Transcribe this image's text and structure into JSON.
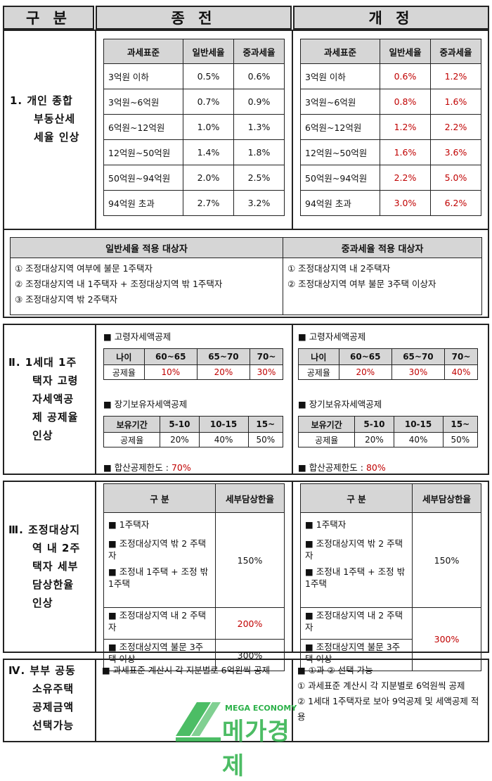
{
  "header": {
    "col1": "구 분",
    "col2": "종 전",
    "col3": "개 정"
  },
  "section1": {
    "label": [
      "1. 개인 종합",
      "부동산세",
      "세율 인상"
    ],
    "tax_headers": [
      "과세표준",
      "일반세율",
      "중과세율"
    ],
    "before": [
      [
        "3억원 이하",
        "0.5%",
        "0.6%"
      ],
      [
        "3억원~6억원",
        "0.7%",
        "0.9%"
      ],
      [
        "6억원~12억원",
        "1.0%",
        "1.3%"
      ],
      [
        "12억원~50억원",
        "1.4%",
        "1.8%"
      ],
      [
        "50억원~94억원",
        "2.0%",
        "2.5%"
      ],
      [
        "94억원 초과",
        "2.7%",
        "3.2%"
      ]
    ],
    "after": [
      [
        "3억원 이하",
        "0.6%",
        "1.2%"
      ],
      [
        "3억원~6억원",
        "0.8%",
        "1.6%"
      ],
      [
        "6억원~12억원",
        "1.2%",
        "2.2%"
      ],
      [
        "12억원~50억원",
        "1.6%",
        "3.6%"
      ],
      [
        "50억원~94억원",
        "2.2%",
        "5.0%"
      ],
      [
        "94억원 초과",
        "3.0%",
        "6.2%"
      ]
    ],
    "target_headers": [
      "일반세율 적용 대상자",
      "중과세율 적용 대상자"
    ],
    "general_targets": [
      "① 조정대상지역 여부에 불문 1주택자",
      "② 조정대상지역 내 1주택자 + 조정대상지역 밖 1주택자",
      "③ 조정대상지역 밖 2주택자"
    ],
    "heavy_targets": [
      "① 조정대상지역 내 2주택자",
      "② 조정대상지역 여부 불문 3주택 이상자"
    ]
  },
  "section2": {
    "label": [
      "Ⅱ. 1세대 1주",
      "택자 고령",
      "자세액공",
      "제 공제율",
      "인상"
    ],
    "elderly_title": "■ 고령자세액공제",
    "age_headers": [
      "나이",
      "60~65",
      "65~70",
      "70~"
    ],
    "deduct_label": "공제율",
    "before_age": [
      "10%",
      "20%",
      "30%"
    ],
    "after_age": [
      "20%",
      "30%",
      "40%"
    ],
    "long_title": "■ 장기보유자세액공제",
    "hold_headers": [
      "보유기간",
      "5-10",
      "10-15",
      "15~"
    ],
    "hold_rates": [
      "20%",
      "40%",
      "50%"
    ],
    "limit_label": "■ 합산공제한도 :",
    "before_limit": "70%",
    "after_limit": "80%"
  },
  "section3": {
    "label": [
      "Ⅲ. 조정대상지",
      "역 내 2주",
      "택자 세부",
      "담상한율",
      "인상"
    ],
    "headers": [
      "구 분",
      "세부담상한율"
    ],
    "group1": [
      "■ 1주택자",
      "■ 조정대상지역 밖 2 주택자",
      "■ 조정내 1주택 + 조정 밖 1주택"
    ],
    "group2": "■ 조정대상지역 내 2 주택자",
    "group3": "■ 조정대상지역 불문 3주택 이상",
    "before_rates": [
      "150%",
      "200%",
      "300%"
    ],
    "after_rates": [
      "150%",
      "300%"
    ]
  },
  "section4": {
    "label": [
      "Ⅳ. 부부 공동",
      "소유주택",
      "공제금액",
      "선택가능"
    ],
    "before": "■ 과세표준 계산시 각 지분별로 6억원씩 공제",
    "after": [
      "■ ①과 ② 선택 가능",
      "① 과세표준 계산시 각 지분별로 6억원씩 공제",
      "② 1세대 1주택자로 보아 9억공제 및 세액공제 적용"
    ]
  },
  "logo": {
    "top": "MEGA ECONOMY",
    "main": "메가경제"
  },
  "colors": {
    "header_bg": "#d6d6d6",
    "red": "#c00000",
    "logo_green": "#2db14a"
  }
}
